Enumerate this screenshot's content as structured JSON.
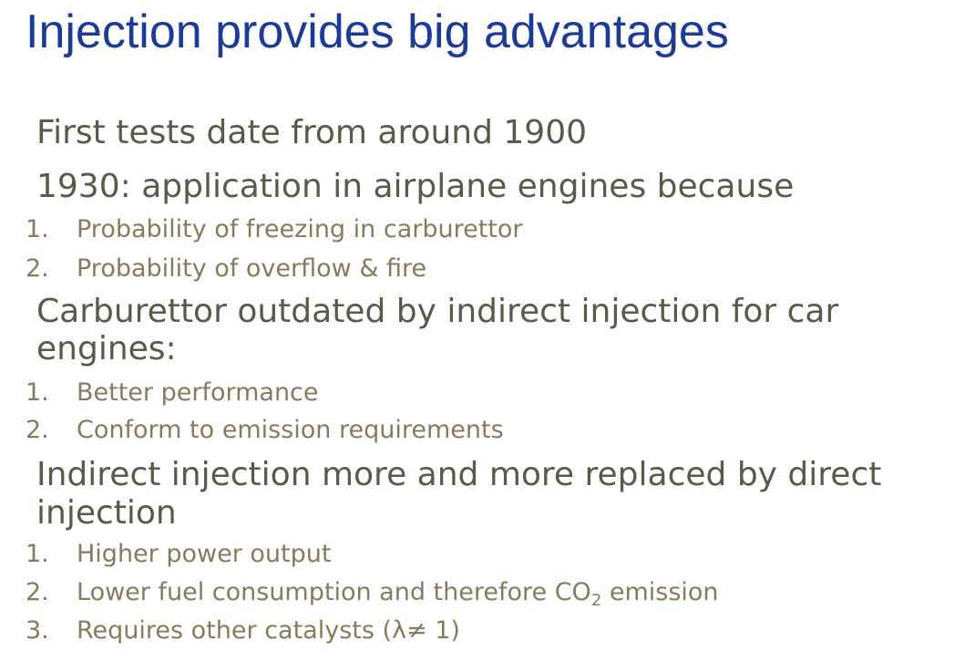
{
  "title": "Injection provides big advantages",
  "sections": [
    {
      "heading": "First tests date from around 1900",
      "items": []
    },
    {
      "heading": "1930: application in airplane engines because",
      "items": [
        {
          "num": "1.",
          "text": "Probability of freezing in carburettor"
        },
        {
          "num": "2.",
          "text": "Probability of overflow & fire"
        }
      ]
    },
    {
      "heading_lines": [
        "Carburettor outdated by indirect injection for car",
        "engines:"
      ],
      "items": [
        {
          "num": "1.",
          "text": "Better performance"
        },
        {
          "num": "2.",
          "text": "Conform to emission requirements"
        }
      ]
    },
    {
      "heading_lines": [
        "Indirect injection more and more replaced by direct",
        "injection"
      ],
      "items": [
        {
          "num": "1.",
          "text": "Higher power output"
        },
        {
          "num": "2.",
          "text_before": "Lower fuel consumption and therefore CO",
          "subscript": "2",
          "text_after": " emission"
        },
        {
          "num": "3.",
          "text": "Requires other catalysts (λ≠ 1)"
        }
      ]
    }
  ]
}
